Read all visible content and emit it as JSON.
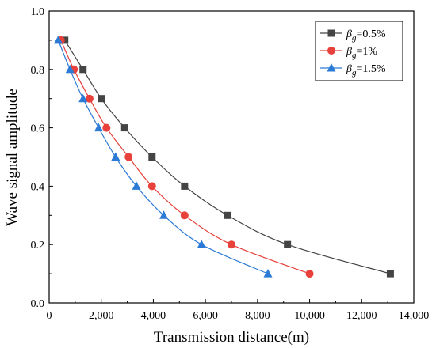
{
  "chart_data": {
    "type": "line",
    "xlabel": "Transmission distance(m)",
    "ylabel": "Wave signal amplitude",
    "xlim": [
      0,
      14000
    ],
    "ylim": [
      0.0,
      1.0
    ],
    "x_ticks": [
      0,
      2000,
      4000,
      6000,
      8000,
      10000,
      12000,
      14000
    ],
    "x_tick_labels": [
      "0",
      "2,000",
      "4,000",
      "6,000",
      "8,000",
      "10,000",
      "12,000",
      "14,000"
    ],
    "y_ticks": [
      0.0,
      0.2,
      0.4,
      0.6,
      0.8,
      1.0
    ],
    "y_tick_labels": [
      "0.0",
      "0.2",
      "0.4",
      "0.6",
      "0.8",
      "1.0"
    ],
    "legend_position": "top-right",
    "grid": false,
    "series": [
      {
        "name": "β_g=0.5%",
        "legend_symbol": "β",
        "legend_sub": "g",
        "legend_suffix": "=0.5%",
        "color": "#444444",
        "marker": "square",
        "x": [
          600,
          1300,
          2000,
          2900,
          3950,
          5200,
          6850,
          9150,
          13100
        ],
        "y": [
          0.9,
          0.8,
          0.7,
          0.6,
          0.5,
          0.4,
          0.3,
          0.2,
          0.1
        ]
      },
      {
        "name": "β_g=1%",
        "legend_symbol": "β",
        "legend_sub": "g",
        "legend_suffix": "=1%",
        "color": "#e8403a",
        "marker": "circle",
        "x": [
          450,
          950,
          1550,
          2200,
          3050,
          3950,
          5200,
          7000,
          10000
        ],
        "y": [
          0.9,
          0.8,
          0.7,
          0.6,
          0.5,
          0.4,
          0.3,
          0.2,
          0.1
        ]
      },
      {
        "name": "β_g=1.5%",
        "legend_symbol": "β",
        "legend_sub": "g",
        "legend_suffix": "=1.5%",
        "color": "#2b7bd6",
        "marker": "triangle",
        "x": [
          350,
          800,
          1300,
          1900,
          2550,
          3350,
          4400,
          5850,
          8400
        ],
        "y": [
          0.9,
          0.8,
          0.7,
          0.6,
          0.5,
          0.4,
          0.3,
          0.2,
          0.1
        ]
      }
    ]
  }
}
